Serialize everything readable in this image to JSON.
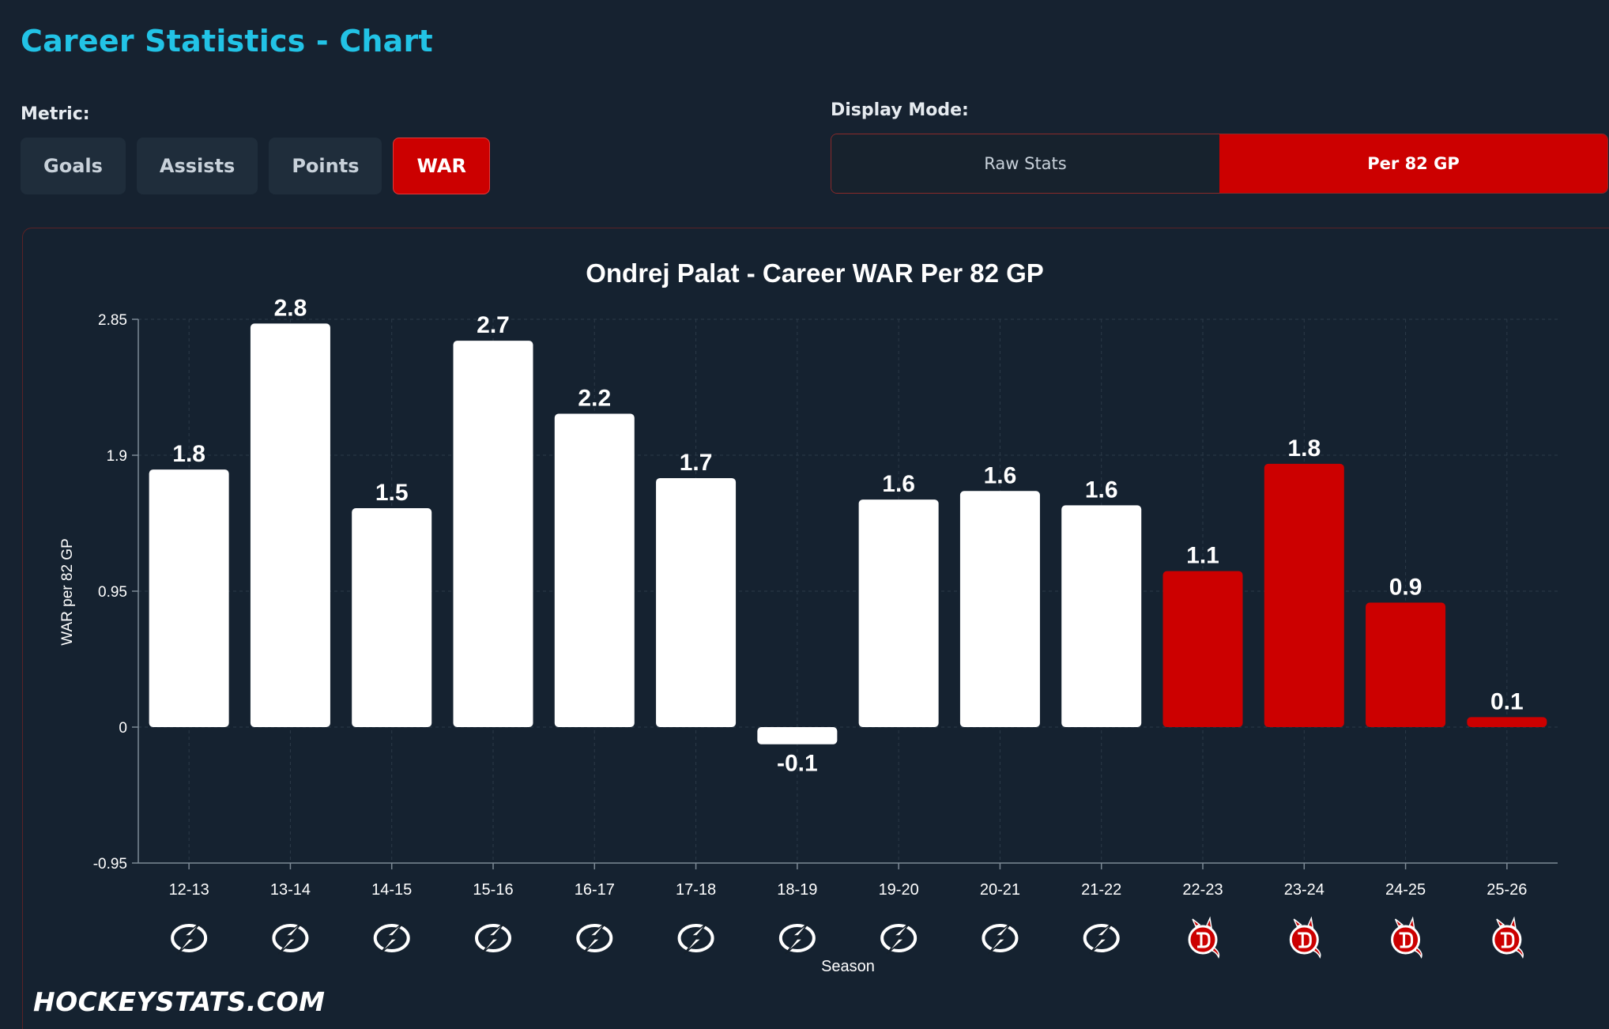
{
  "header": {
    "title": "Career Statistics - Chart"
  },
  "metric": {
    "label": "Metric:",
    "options": [
      "Goals",
      "Assists",
      "Points",
      "WAR"
    ],
    "active": "WAR"
  },
  "display_mode": {
    "label": "Display Mode:",
    "options": [
      "Raw Stats",
      "Per 82 GP"
    ],
    "active": "Per 82 GP"
  },
  "colors": {
    "accent": "#22c3e6",
    "active_red": "#cc0000",
    "bar_white": "#ffffff",
    "bar_red": "#cc0000"
  },
  "team_icons": {
    "tbl": "lightning-bolt-icon",
    "njd": "devils-icon"
  },
  "chart_data": {
    "type": "bar",
    "title": "Ondrej Palat - Career WAR Per 82 GP",
    "xlabel": "Season",
    "ylabel": "WAR per 82 GP",
    "ylim": [
      -0.95,
      2.85
    ],
    "yticks": [
      "2.85",
      "1.9",
      "0.95",
      "0",
      "-0.95"
    ],
    "yticks_values": [
      2.85,
      1.9,
      0.95,
      0,
      -0.95
    ],
    "grid": true,
    "categories": [
      "12-13",
      "13-14",
      "14-15",
      "15-16",
      "16-17",
      "17-18",
      "18-19",
      "19-20",
      "20-21",
      "21-22",
      "22-23",
      "23-24",
      "24-25",
      "25-26"
    ],
    "values": [
      1.8,
      2.8,
      1.5,
      2.7,
      2.2,
      1.7,
      -0.1,
      1.6,
      1.6,
      1.6,
      1.1,
      1.8,
      0.9,
      0.1
    ],
    "plot_values": [
      1.8,
      2.82,
      1.53,
      2.7,
      2.19,
      1.74,
      -0.12,
      1.59,
      1.65,
      1.55,
      1.09,
      1.84,
      0.87,
      0.07
    ],
    "labels": [
      "1.8",
      "2.8",
      "1.5",
      "2.7",
      "2.2",
      "1.7",
      "-0.1",
      "1.6",
      "1.6",
      "1.6",
      "1.1",
      "1.8",
      "0.9",
      "0.1"
    ],
    "teams": [
      "tbl",
      "tbl",
      "tbl",
      "tbl",
      "tbl",
      "tbl",
      "tbl",
      "tbl",
      "tbl",
      "tbl",
      "njd",
      "njd",
      "njd",
      "njd"
    ]
  },
  "watermark": "HOCKEYSTATS.COM"
}
